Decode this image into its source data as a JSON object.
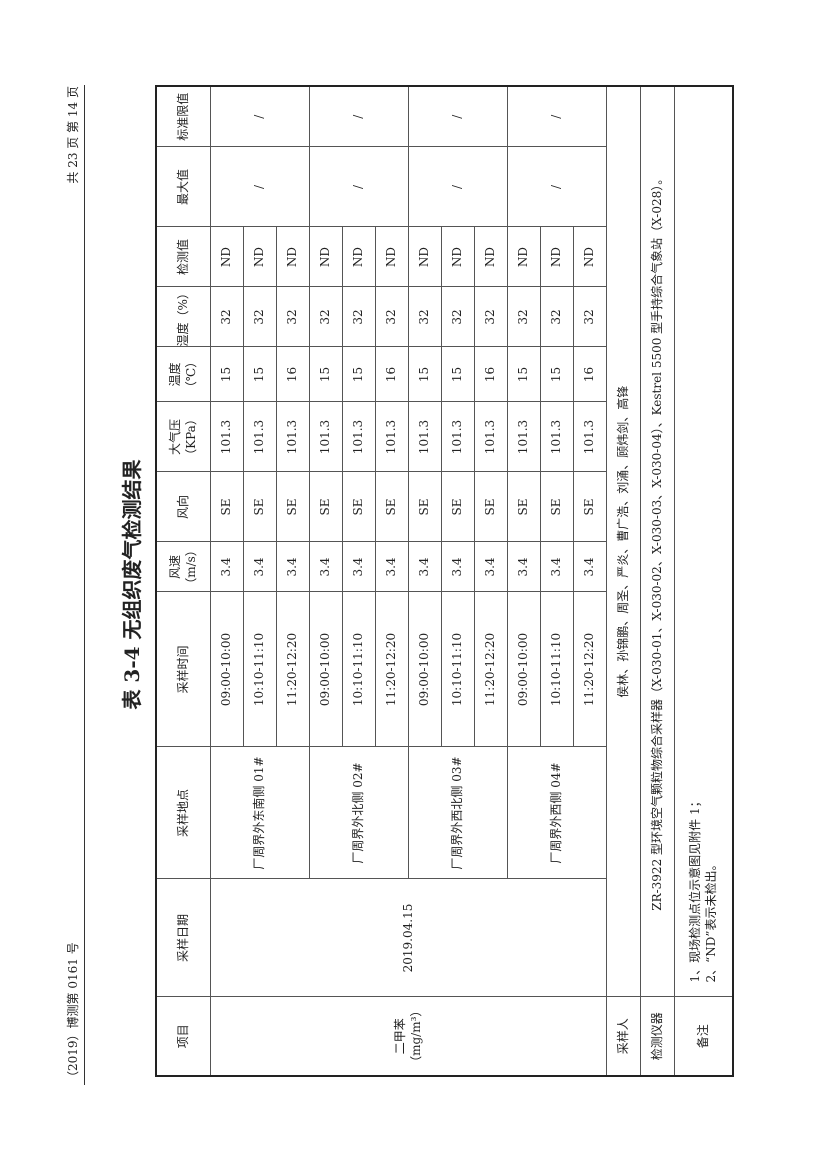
{
  "header": {
    "report_no": "（2019）博测第 0161 号",
    "page_info": "共 23 页  第 14 页"
  },
  "title": "表 3-4  无组织废气检测结果",
  "columns": [
    "项目",
    "采样日期",
    "采样地点",
    "采样时间",
    "风速（m/s）",
    "风向",
    "大气压（KPa）",
    "温度（℃）",
    "湿度（%）",
    "检测值",
    "最大值",
    "标准限值"
  ],
  "project": "二甲苯（mg/m³）",
  "date": "2019.04.15",
  "locations": [
    {
      "name": "厂周界外东南侧 01#",
      "max": "/",
      "limit": "/",
      "rows": [
        {
          "time": "09:00-10:00",
          "wind_speed": "3.4",
          "wind_dir": "SE",
          "pressure": "101.3",
          "temp": "15",
          "humidity": "32",
          "value": "ND"
        },
        {
          "time": "10:10-11:10",
          "wind_speed": "3.4",
          "wind_dir": "SE",
          "pressure": "101.3",
          "temp": "15",
          "humidity": "32",
          "value": "ND"
        },
        {
          "time": "11:20-12:20",
          "wind_speed": "3.4",
          "wind_dir": "SE",
          "pressure": "101.3",
          "temp": "16",
          "humidity": "32",
          "value": "ND"
        }
      ]
    },
    {
      "name": "厂周界外北侧 02#",
      "max": "/",
      "limit": "/",
      "rows": [
        {
          "time": "09:00-10:00",
          "wind_speed": "3.4",
          "wind_dir": "SE",
          "pressure": "101.3",
          "temp": "15",
          "humidity": "32",
          "value": "ND"
        },
        {
          "time": "10:10-11:10",
          "wind_speed": "3.4",
          "wind_dir": "SE",
          "pressure": "101.3",
          "temp": "15",
          "humidity": "32",
          "value": "ND"
        },
        {
          "time": "11:20-12:20",
          "wind_speed": "3.4",
          "wind_dir": "SE",
          "pressure": "101.3",
          "temp": "16",
          "humidity": "32",
          "value": "ND"
        }
      ]
    },
    {
      "name": "厂周界外西北侧 03#",
      "max": "/",
      "limit": "/",
      "rows": [
        {
          "time": "09:00-10:00",
          "wind_speed": "3.4",
          "wind_dir": "SE",
          "pressure": "101.3",
          "temp": "15",
          "humidity": "32",
          "value": "ND"
        },
        {
          "time": "10:10-11:10",
          "wind_speed": "3.4",
          "wind_dir": "SE",
          "pressure": "101.3",
          "temp": "15",
          "humidity": "32",
          "value": "ND"
        },
        {
          "time": "11:20-12:20",
          "wind_speed": "3.4",
          "wind_dir": "SE",
          "pressure": "101.3",
          "temp": "16",
          "humidity": "32",
          "value": "ND"
        }
      ]
    },
    {
      "name": "厂周界外西侧 04#",
      "max": "/",
      "limit": "/",
      "rows": [
        {
          "time": "09:00-10:00",
          "wind_speed": "3.4",
          "wind_dir": "SE",
          "pressure": "101.3",
          "temp": "15",
          "humidity": "32",
          "value": "ND"
        },
        {
          "time": "10:10-11:10",
          "wind_speed": "3.4",
          "wind_dir": "SE",
          "pressure": "101.3",
          "temp": "15",
          "humidity": "32",
          "value": "ND"
        },
        {
          "time": "11:20-12:20",
          "wind_speed": "3.4",
          "wind_dir": "SE",
          "pressure": "101.3",
          "temp": "16",
          "humidity": "32",
          "value": "ND"
        }
      ]
    }
  ],
  "samplers": {
    "label": "采样人",
    "value": "侯林、孙锦鹏、周圣、严炎、曹广浩、刘涌、顾炜剑、高锋"
  },
  "instruments": {
    "label": "检测仪器",
    "value": "ZR-3922 型环境空气颗粒物综合采样器（X-030-01、X-030-02、X-030-03、X-030-04）、Kestrel 5500 型手持综合气象站（X-028）。"
  },
  "notes": {
    "label": "备注",
    "lines": [
      "1、现场检测点位示意图见附件 1；",
      "2、“ND”表示未检出。"
    ]
  }
}
